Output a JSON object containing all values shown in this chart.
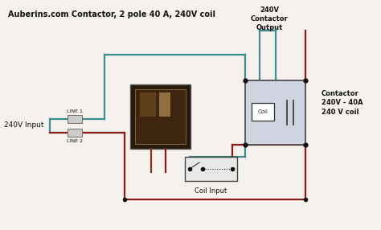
{
  "title": "Auberins.com Contactor, 2 pole 40 A, 240V coil",
  "bg_color": "#f5f2ee",
  "wire_teal": "#3d8b8b",
  "wire_red": "#8b1a1a",
  "wire_brown": "#7a3a10",
  "text_color": "#111111",
  "label_input": "240V Input",
  "label_coil_input": "Coil Input",
  "label_output": "240V\nContactor\nOutput",
  "label_contactor": "Contactor\n240V - 40A\n240 V coil",
  "label_line1": "LINE 1",
  "label_line2": "LINE 2",
  "fig_w": 4.74,
  "fig_h": 2.86,
  "dpi": 100
}
